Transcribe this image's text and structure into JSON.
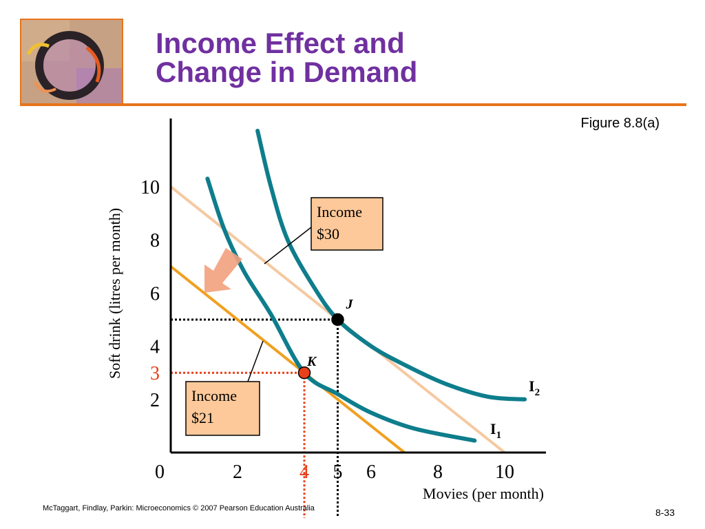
{
  "slide": {
    "title_line1": "Income Effect and",
    "title_line2": "Change in Demand",
    "figure_label": "Figure 8.8(a)",
    "footer": "McTaggart, Findlay, Parkin: Microeconomics © 2007 Pearson Education Australia",
    "page_number": "8-33"
  },
  "colors": {
    "accent": "#e8731a",
    "title": "#7030a0",
    "curve": "#0e7d8c",
    "budget_high": "#f5c9a0",
    "budget_low": "#f0a020",
    "highlight": "#e8401a",
    "callout_fill": "#fdc99a"
  },
  "chart_data": {
    "type": "line",
    "xlabel": "Movies (per month)",
    "ylabel": "Soft drink (litres per month)",
    "xlim": [
      0,
      12
    ],
    "ylim": [
      0,
      12
    ],
    "x_ticks": [
      {
        "value": 0,
        "label": "0"
      },
      {
        "value": 2,
        "label": "2"
      },
      {
        "value": 4,
        "label": "4",
        "highlight": true
      },
      {
        "value": 5,
        "label": "5"
      },
      {
        "value": 6,
        "label": "6"
      },
      {
        "value": 8,
        "label": "8"
      },
      {
        "value": 10,
        "label": "10"
      }
    ],
    "y_ticks": [
      {
        "value": 2,
        "label": "2"
      },
      {
        "value": 3,
        "label": "3",
        "highlight": true
      },
      {
        "value": 4,
        "label": "4"
      },
      {
        "value": 6,
        "label": "6"
      },
      {
        "value": 8,
        "label": "8"
      },
      {
        "value": 10,
        "label": "10"
      }
    ],
    "budget_lines": [
      {
        "name": "Income $30",
        "x_intercept": 10,
        "y_intercept": 10,
        "style": "high"
      },
      {
        "name": "Income $21",
        "x_intercept": 7,
        "y_intercept": 7,
        "style": "low"
      }
    ],
    "indifference_curves": [
      {
        "label": "I",
        "subscript": "1",
        "points": [
          [
            1.1,
            10.3
          ],
          [
            1.6,
            8.4
          ],
          [
            2.2,
            6.8
          ],
          [
            3,
            5.2
          ],
          [
            4,
            3.0
          ],
          [
            5,
            2.2
          ],
          [
            6,
            1.5
          ],
          [
            7.3,
            0.9
          ],
          [
            9.1,
            0.45
          ]
        ]
      },
      {
        "label": "I",
        "subscript": "2",
        "points": [
          [
            2.6,
            12.1
          ],
          [
            3,
            10
          ],
          [
            3.5,
            8
          ],
          [
            4.3,
            6.2
          ],
          [
            5,
            5
          ],
          [
            6,
            4
          ],
          [
            7,
            3.3
          ],
          [
            8.2,
            2.6
          ],
          [
            9.5,
            2.1
          ],
          [
            10.6,
            2.0
          ]
        ]
      }
    ],
    "points": [
      {
        "label": "J",
        "x": 5,
        "y": 5,
        "color": "#000000"
      },
      {
        "label": "K",
        "x": 4,
        "y": 3,
        "color": "#e8401a"
      }
    ],
    "callouts": [
      {
        "line1": "Income",
        "line2": "$30",
        "target": "Income $30"
      },
      {
        "line1": "Income",
        "line2": "$21",
        "target": "Income $21"
      }
    ]
  }
}
